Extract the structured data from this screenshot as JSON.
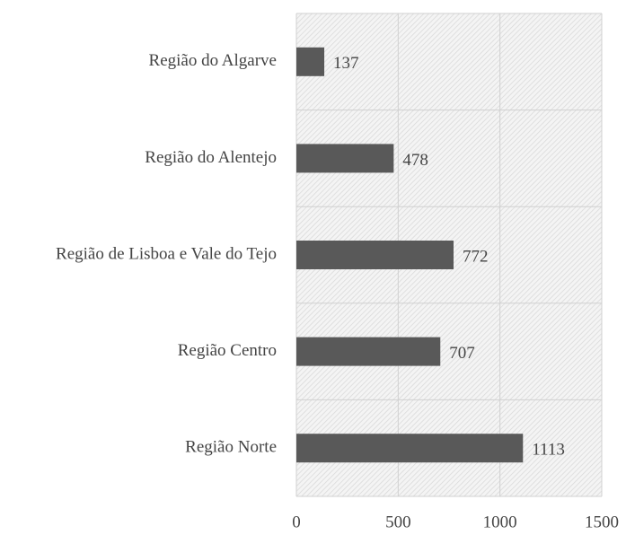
{
  "chart_data": {
    "type": "barh",
    "categories": [
      "Região do Algarve",
      "Região do Alentejo",
      "Região de Lisboa e Vale do Tejo",
      "Região Centro",
      "Região Norte"
    ],
    "values": [
      137,
      478,
      772,
      707,
      1113
    ],
    "color": "#595959",
    "xlim": [
      0,
      1500
    ],
    "xticks": [
      0,
      500,
      1000,
      1500
    ],
    "grid": true
  }
}
